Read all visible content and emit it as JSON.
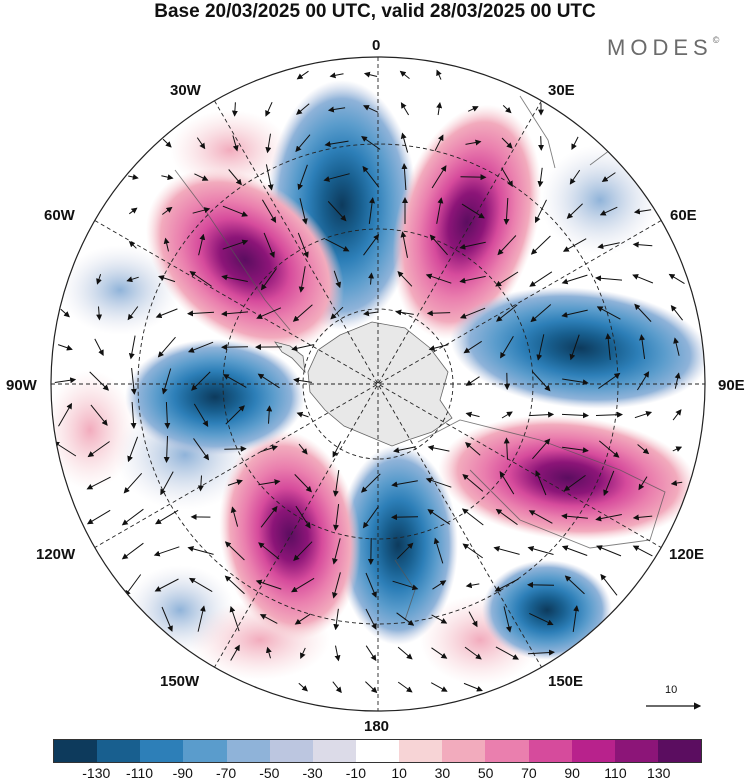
{
  "header": {
    "title": "Base 20/03/2025 00 UTC, valid 28/03/2025 00 UTC",
    "brand": "MODES",
    "brand_mark": "©"
  },
  "map": {
    "projection": "south polar stereographic",
    "longitude_labels": {
      "lon_0": "0",
      "lon_30e": "30E",
      "lon_60e": "60E",
      "lon_90e": "90E",
      "lon_120e": "120E",
      "lon_150e": "150E",
      "lon_180": "180",
      "lon_150w": "150W",
      "lon_120w": "120W",
      "lon_90w": "90W",
      "lon_60w": "60W",
      "lon_30w": "30W"
    },
    "anomaly_centers": [
      {
        "sign": "negative",
        "center_lon": "0",
        "peak": -130
      },
      {
        "sign": "positive",
        "center_lon": "30E",
        "peak": 130
      },
      {
        "sign": "negative",
        "center_lon": "75E",
        "peak": -110
      },
      {
        "sign": "positive",
        "center_lon": "110E",
        "peak": 130
      },
      {
        "sign": "negative",
        "center_lon": "140E",
        "peak": -90
      },
      {
        "sign": "negative",
        "center_lon": "170E",
        "peak": -110
      },
      {
        "sign": "positive",
        "center_lon": "150W",
        "peak": 110
      },
      {
        "sign": "negative",
        "center_lon": "90W",
        "peak": -90
      },
      {
        "sign": "positive",
        "center_lon": "45W",
        "peak": 130
      }
    ],
    "reference_vector": "10"
  },
  "colorbar": {
    "colors": [
      "#0d3a5c",
      "#185f8f",
      "#2d7fb8",
      "#5a9ccc",
      "#8fb3d9",
      "#bcc6e0",
      "#dcdbe8",
      "#ffffff",
      "#f7d4d6",
      "#f2abbd",
      "#ea7fae",
      "#d64b9c",
      "#b8228c",
      "#8c1578",
      "#5b0d60"
    ],
    "tick_labels": [
      "-130",
      "-110",
      "-90",
      "-70",
      "-50",
      "-30",
      "-10",
      "10",
      "30",
      "50",
      "70",
      "90",
      "110",
      "130"
    ]
  }
}
